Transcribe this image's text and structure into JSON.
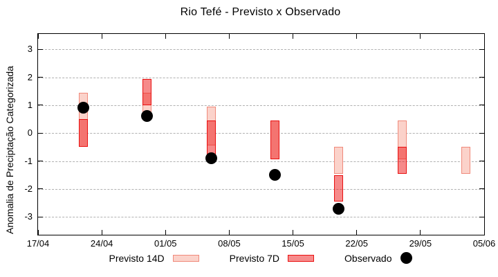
{
  "chart_data": {
    "type": "bar",
    "subtype": "ranged forecast boxes with observed scatter dots",
    "title": "Rio Tefé - Previsto x Observado",
    "xlabel": "",
    "ylabel": "Anomalia de Preciptação Categorizada",
    "y_ticks": [
      3,
      2,
      1,
      0,
      -1,
      -2,
      -3
    ],
    "ylim": [
      -3.64,
      3.55
    ],
    "x_tick_labels": [
      "17/04",
      "24/04",
      "01/05",
      "08/05",
      "15/05",
      "22/05",
      "29/05",
      "05/06"
    ],
    "x_tick_days": [
      0,
      7,
      14,
      21,
      28,
      35,
      42,
      49
    ],
    "xlim_days": [
      0,
      49
    ],
    "grid": "horizontal dashed",
    "legend_position": "bottom",
    "points": [
      {
        "date": "22/04",
        "day": 5,
        "previsto_14d": [
          -0.5,
          1.45
        ],
        "previsto_7d": [
          -0.5,
          0.5
        ],
        "observado": 0.9
      },
      {
        "date": "29/04",
        "day": 12,
        "previsto_14d": [
          0.55,
          1.45
        ],
        "previsto_7d": [
          1.0,
          1.95
        ],
        "observado": 0.6
      },
      {
        "date": "06/05",
        "day": 19,
        "previsto_14d": [
          -0.45,
          0.95
        ],
        "previsto_7d": [
          -0.95,
          0.45
        ],
        "observado": -0.9
      },
      {
        "date": "13/05",
        "day": 26,
        "previsto_14d": [
          -0.95,
          0.45
        ],
        "previsto_7d": [
          -0.95,
          0.45
        ],
        "observado": -1.5
      },
      {
        "date": "20/05",
        "day": 33,
        "previsto_14d": [
          -1.45,
          -0.5
        ],
        "previsto_7d": [
          -2.45,
          -1.5
        ],
        "observado": -2.7
      },
      {
        "date": "27/05",
        "day": 40,
        "previsto_14d": [
          -0.95,
          0.45
        ],
        "previsto_7d": [
          -1.45,
          -0.5
        ],
        "observado": null
      },
      {
        "date": "03/06",
        "day": 47,
        "previsto_14d": [
          -1.45,
          -0.5
        ],
        "previsto_7d": null,
        "observado": null
      }
    ],
    "legend": [
      {
        "label": "Previsto 14D",
        "swatch": "box",
        "fill": "#fbd2ca",
        "border": "#f0897a"
      },
      {
        "label": "Previsto 7D",
        "swatch": "box",
        "fill": "#f68b8b",
        "border": "#e90f0f"
      },
      {
        "label": "Observado",
        "swatch": "dot",
        "fill": "#000000"
      }
    ],
    "colors": {
      "previsto_14d_fill": "#fbd2ca",
      "previsto_14d_border": "#f0897a",
      "previsto_7d_fill_rgba": "rgba(237,21,21,0.5)",
      "previsto_7d_border": "#e90f0f",
      "observado": "#000000",
      "gridline": "#b0b0b0",
      "axis": "#000000"
    }
  }
}
